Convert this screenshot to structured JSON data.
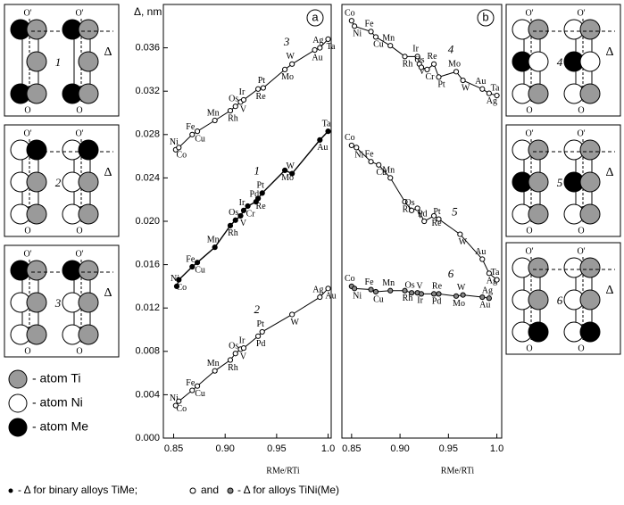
{
  "chart_data": [
    {
      "type": "scatter",
      "panel_label": "a",
      "ylabel": "Δ, nm",
      "xlabel": "RMe/RTi",
      "xlim": [
        0.84,
        1.003
      ],
      "ylim": [
        0,
        0.04
      ],
      "xticks": [
        0.85,
        {
          "value": 0.9,
          "label": "0.90"
        },
        0.95,
        {
          "value": 1.0,
          "label": "1.0"
        }
      ],
      "yticks": [
        {
          "value": 0,
          "label": "0.000"
        },
        {
          "value": 0.004,
          "label": "0.004"
        },
        {
          "value": 0.008,
          "label": "0.008"
        },
        {
          "value": 0.012,
          "label": "0.012"
        },
        {
          "value": 0.016,
          "label": "0.016"
        },
        {
          "value": 0.02,
          "label": "0.020"
        },
        {
          "value": 0.024,
          "label": "0.024"
        },
        {
          "value": 0.028,
          "label": "0.028"
        },
        {
          "value": 0.032,
          "label": "0.032"
        },
        {
          "value": 0.036,
          "label": "0.036"
        }
      ],
      "series": [
        {
          "name": "3",
          "color": "#000000",
          "marker_fill": "#ffffff",
          "labels": [
            "Ni",
            "Co",
            "Fe",
            "Cu",
            "Mn",
            "Rh",
            "Os",
            "V",
            "Ir",
            "Re",
            "Pt",
            "Mo",
            "W",
            "Au",
            "Ag",
            "Ta"
          ],
          "x": [
            0.852,
            0.855,
            0.868,
            0.873,
            0.89,
            0.905,
            0.91,
            0.915,
            0.918,
            0.932,
            0.937,
            0.958,
            0.965,
            0.987,
            0.992,
            1.0
          ],
          "values": [
            0.0266,
            0.0268,
            0.028,
            0.0283,
            0.0293,
            0.0302,
            0.0306,
            0.031,
            0.0312,
            0.0322,
            0.0323,
            0.034,
            0.0345,
            0.0358,
            0.036,
            0.0368
          ]
        },
        {
          "name": "1",
          "color": "#000000",
          "marker_fill": "#000000",
          "labels": [
            "Ni",
            "Co",
            "Fe",
            "Cu",
            "Mn",
            "Rh",
            "Os",
            "V",
            "Ir",
            "Cr",
            "Pd",
            "Re",
            "Pt",
            "Mo",
            "W",
            "Au",
            "Ta"
          ],
          "x": [
            0.853,
            0.855,
            0.868,
            0.873,
            0.89,
            0.905,
            0.91,
            0.915,
            0.918,
            0.922,
            0.93,
            0.932,
            0.936,
            0.958,
            0.965,
            0.992,
            1.0
          ],
          "values": [
            0.014,
            0.0146,
            0.0158,
            0.0162,
            0.0176,
            0.0196,
            0.0201,
            0.0205,
            0.021,
            0.0214,
            0.0218,
            0.0221,
            0.0226,
            0.0247,
            0.0244,
            0.0275,
            0.0283
          ]
        },
        {
          "name": "2",
          "color": "#000000",
          "marker_fill": "#ffffff",
          "labels": [
            "Ni",
            "Co",
            "Fe",
            "Cu",
            "Mn",
            "Rh",
            "Os",
            "V",
            "Ir",
            "Pd",
            "Pt",
            "W",
            "Ag",
            "Au"
          ],
          "x": [
            0.852,
            0.855,
            0.868,
            0.873,
            0.89,
            0.905,
            0.91,
            0.915,
            0.918,
            0.932,
            0.936,
            0.965,
            0.992,
            1.0
          ],
          "values": [
            0.003,
            0.0034,
            0.0044,
            0.0048,
            0.0062,
            0.0072,
            0.0078,
            0.0082,
            0.0083,
            0.0094,
            0.0098,
            0.0114,
            0.013,
            0.0138
          ]
        }
      ]
    },
    {
      "type": "scatter",
      "panel_label": "b",
      "xlabel": "RMe/RTi",
      "xlim": [
        0.84,
        1.005
      ],
      "ylim": [
        0,
        0.04
      ],
      "xticks": [
        0.85,
        {
          "value": 0.9,
          "label": "0.90"
        },
        0.95,
        {
          "value": 1.0,
          "label": "1.0"
        }
      ],
      "series": [
        {
          "name": "4",
          "color": "#000000",
          "marker_fill": "#ffffff",
          "labels": [
            "Co",
            "Ni",
            "Fe",
            "Cu",
            "Mn",
            "Rh",
            "Ir",
            "V",
            "Os",
            "Cr",
            "Re",
            "Pt",
            "Mo",
            "W",
            "Au",
            "Ag",
            "Ta"
          ],
          "x": [
            0.85,
            0.853,
            0.87,
            0.875,
            0.89,
            0.905,
            0.918,
            0.92,
            0.922,
            0.928,
            0.935,
            0.94,
            0.958,
            0.965,
            0.985,
            0.992,
            1.0
          ],
          "values": [
            0.0385,
            0.038,
            0.0375,
            0.037,
            0.0362,
            0.0352,
            0.0352,
            0.0345,
            0.0342,
            0.034,
            0.0345,
            0.0333,
            0.0338,
            0.033,
            0.0322,
            0.0318,
            0.0316
          ]
        },
        {
          "name": "5",
          "color": "#000000",
          "marker_fill": "#ffffff",
          "labels": [
            "Co",
            "Ni",
            "Fe",
            "Cu",
            "Mn",
            "Rh",
            "Os",
            "V",
            "Pd",
            "Re",
            "Pt",
            "W",
            "Au",
            "Ag",
            "Ta"
          ],
          "x": [
            0.85,
            0.855,
            0.87,
            0.878,
            0.89,
            0.905,
            0.912,
            0.918,
            0.925,
            0.935,
            0.94,
            0.962,
            0.985,
            0.992,
            1.0
          ],
          "values": [
            0.027,
            0.0268,
            0.0255,
            0.0252,
            0.024,
            0.0218,
            0.021,
            0.0212,
            0.02,
            0.0205,
            0.0202,
            0.0188,
            0.0165,
            0.0152,
            0.0146
          ]
        },
        {
          "name": "6",
          "color": "#000000",
          "marker_fill": "#888888",
          "labels": [
            "Co",
            "Ni",
            "Fe",
            "Cu",
            "Mn",
            "Rh",
            "Os",
            "Ir",
            "V",
            "Pd",
            "Re",
            "Mo",
            "W",
            "Au",
            "Ag"
          ],
          "x": [
            0.85,
            0.853,
            0.87,
            0.875,
            0.89,
            0.905,
            0.912,
            0.918,
            0.922,
            0.935,
            0.94,
            0.958,
            0.965,
            0.985,
            0.992
          ],
          "values": [
            0.014,
            0.0138,
            0.0137,
            0.0135,
            0.0136,
            0.0136,
            0.0134,
            0.0134,
            0.0133,
            0.0133,
            0.0133,
            0.0131,
            0.0132,
            0.013,
            0.0129
          ]
        }
      ]
    }
  ],
  "diagram_labels": {
    "origin": "O",
    "origin_prime": "O'",
    "delta": "Δ"
  },
  "diagrams": [
    "1",
    "2",
    "3",
    "4",
    "5",
    "6"
  ],
  "legend": [
    "- atom Ti",
    "- atom Ni",
    "- atom Me"
  ],
  "caption": [
    "- Δ for binary alloys TiMe;",
    "and",
    "- Δ for alloys TiNi(Me)"
  ]
}
